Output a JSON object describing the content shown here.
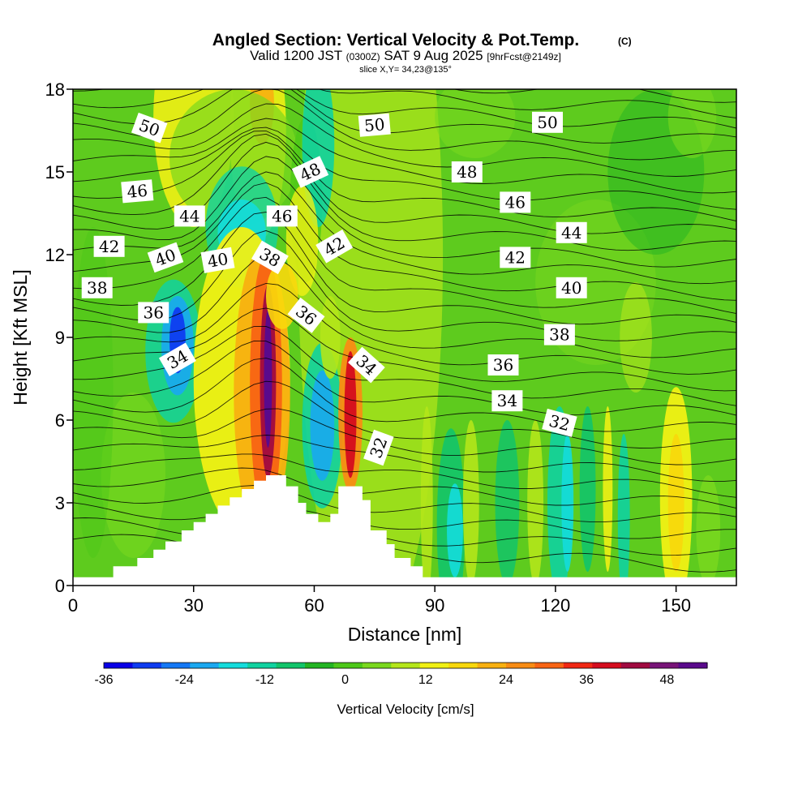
{
  "chart_data": {
    "type": "heatmap",
    "title": "Angled Section: Vertical Velocity & Pot.Temp.",
    "title_mark": "(C)",
    "subtitle_main": "Valid 1200 JST",
    "subtitle_utc": "(0300Z)",
    "subtitle_date": "SAT 9 Aug 2025",
    "subtitle_fcst": "[9hrFcst@2149z]",
    "slice_info": "slice X,Y= 34,23@135°",
    "xlabel": "Distance [nm]",
    "ylabel": "Height [Kft MSL]",
    "xlim": [
      0,
      165
    ],
    "ylim": [
      0,
      18
    ],
    "x_ticks": [
      0,
      30,
      60,
      90,
      120,
      150
    ],
    "y_ticks": [
      0,
      3,
      6,
      9,
      12,
      15,
      18
    ],
    "colorbar": {
      "label": "Vertical Velocity [cm/s]",
      "min": -36,
      "max": 54,
      "step": 4,
      "ticks": [
        -36,
        -24,
        -12,
        0,
        12,
        24,
        36,
        48
      ],
      "colors": [
        "#0a00e6",
        "#0e3cf0",
        "#1478f5",
        "#1aa8f0",
        "#14dcdc",
        "#10d2a0",
        "#12c46a",
        "#22b422",
        "#4cc818",
        "#7ad81e",
        "#b4e61a",
        "#f0f014",
        "#f8d80c",
        "#f8b010",
        "#f88c14",
        "#f86414",
        "#f02814",
        "#d40c1e",
        "#a00a40",
        "#781478",
        "#5a0a8c"
      ]
    },
    "terrain": [
      [
        0,
        0.3
      ],
      [
        5,
        0.3
      ],
      [
        10,
        0.3
      ],
      [
        10,
        0.7
      ],
      [
        16,
        0.7
      ],
      [
        16,
        1.0
      ],
      [
        20,
        1.0
      ],
      [
        20,
        1.3
      ],
      [
        23,
        1.3
      ],
      [
        23,
        1.6
      ],
      [
        27,
        1.6
      ],
      [
        27,
        2.0
      ],
      [
        30,
        2.0
      ],
      [
        30,
        2.3
      ],
      [
        33,
        2.3
      ],
      [
        33,
        2.6
      ],
      [
        36,
        2.6
      ],
      [
        36,
        2.9
      ],
      [
        39,
        2.9
      ],
      [
        39,
        3.2
      ],
      [
        42,
        3.2
      ],
      [
        42,
        3.5
      ],
      [
        45,
        3.5
      ],
      [
        45,
        3.8
      ],
      [
        48,
        3.8
      ],
      [
        48,
        4.0
      ],
      [
        53,
        4.0
      ],
      [
        53,
        3.6
      ],
      [
        56,
        3.6
      ],
      [
        56,
        3.0
      ],
      [
        58,
        3.0
      ],
      [
        58,
        2.6
      ],
      [
        61,
        2.6
      ],
      [
        61,
        2.3
      ],
      [
        64,
        2.3
      ],
      [
        64,
        2.6
      ],
      [
        66,
        2.6
      ],
      [
        66,
        3.6
      ],
      [
        72,
        3.6
      ],
      [
        72,
        3.1
      ],
      [
        74,
        3.1
      ],
      [
        74,
        2.0
      ],
      [
        78,
        2.0
      ],
      [
        78,
        1.5
      ],
      [
        80,
        1.5
      ],
      [
        80,
        1.0
      ],
      [
        84,
        1.0
      ],
      [
        84,
        0.7
      ],
      [
        87,
        0.7
      ],
      [
        87,
        0.3
      ],
      [
        90,
        0.3
      ],
      [
        90,
        0.3
      ],
      [
        165,
        0.3
      ],
      [
        165,
        0
      ]
    ],
    "contour_labels": [
      {
        "text": "50",
        "x": 19,
        "y": 16.6,
        "angle": 20
      },
      {
        "text": "50",
        "x": 75,
        "y": 16.7,
        "angle": -5
      },
      {
        "text": "50",
        "x": 118,
        "y": 16.8,
        "angle": 0
      },
      {
        "text": "48",
        "x": 59,
        "y": 15.0,
        "angle": -25
      },
      {
        "text": "48",
        "x": 98,
        "y": 15.0,
        "angle": 0
      },
      {
        "text": "46",
        "x": 16,
        "y": 14.3,
        "angle": -5
      },
      {
        "text": "46",
        "x": 52,
        "y": 13.4,
        "angle": 0
      },
      {
        "text": "46",
        "x": 110,
        "y": 13.9,
        "angle": 0
      },
      {
        "text": "44",
        "x": 29,
        "y": 13.4,
        "angle": 0
      },
      {
        "text": "44",
        "x": 124,
        "y": 12.8,
        "angle": 0
      },
      {
        "text": "42",
        "x": 9,
        "y": 12.3,
        "angle": 0
      },
      {
        "text": "42",
        "x": 65,
        "y": 12.3,
        "angle": -30
      },
      {
        "text": "42",
        "x": 110,
        "y": 11.9,
        "angle": 0
      },
      {
        "text": "40",
        "x": 23,
        "y": 11.9,
        "angle": -20
      },
      {
        "text": "40",
        "x": 36,
        "y": 11.8,
        "angle": -10
      },
      {
        "text": "40",
        "x": 124,
        "y": 10.8,
        "angle": 0
      },
      {
        "text": "38",
        "x": 6,
        "y": 10.8,
        "angle": 0
      },
      {
        "text": "38",
        "x": 49,
        "y": 11.9,
        "angle": 30
      },
      {
        "text": "38",
        "x": 121,
        "y": 9.1,
        "angle": 0
      },
      {
        "text": "36",
        "x": 20,
        "y": 9.9,
        "angle": 0
      },
      {
        "text": "36",
        "x": 58,
        "y": 9.8,
        "angle": 38
      },
      {
        "text": "36",
        "x": 107,
        "y": 8.0,
        "angle": 0
      },
      {
        "text": "34",
        "x": 26,
        "y": 8.2,
        "angle": -30
      },
      {
        "text": "34",
        "x": 73,
        "y": 8.0,
        "angle": 42
      },
      {
        "text": "34",
        "x": 108,
        "y": 6.7,
        "angle": 0
      },
      {
        "text": "32",
        "x": 76,
        "y": 5.0,
        "angle": -70
      },
      {
        "text": "32",
        "x": 121,
        "y": 5.9,
        "angle": 15
      }
    ]
  }
}
